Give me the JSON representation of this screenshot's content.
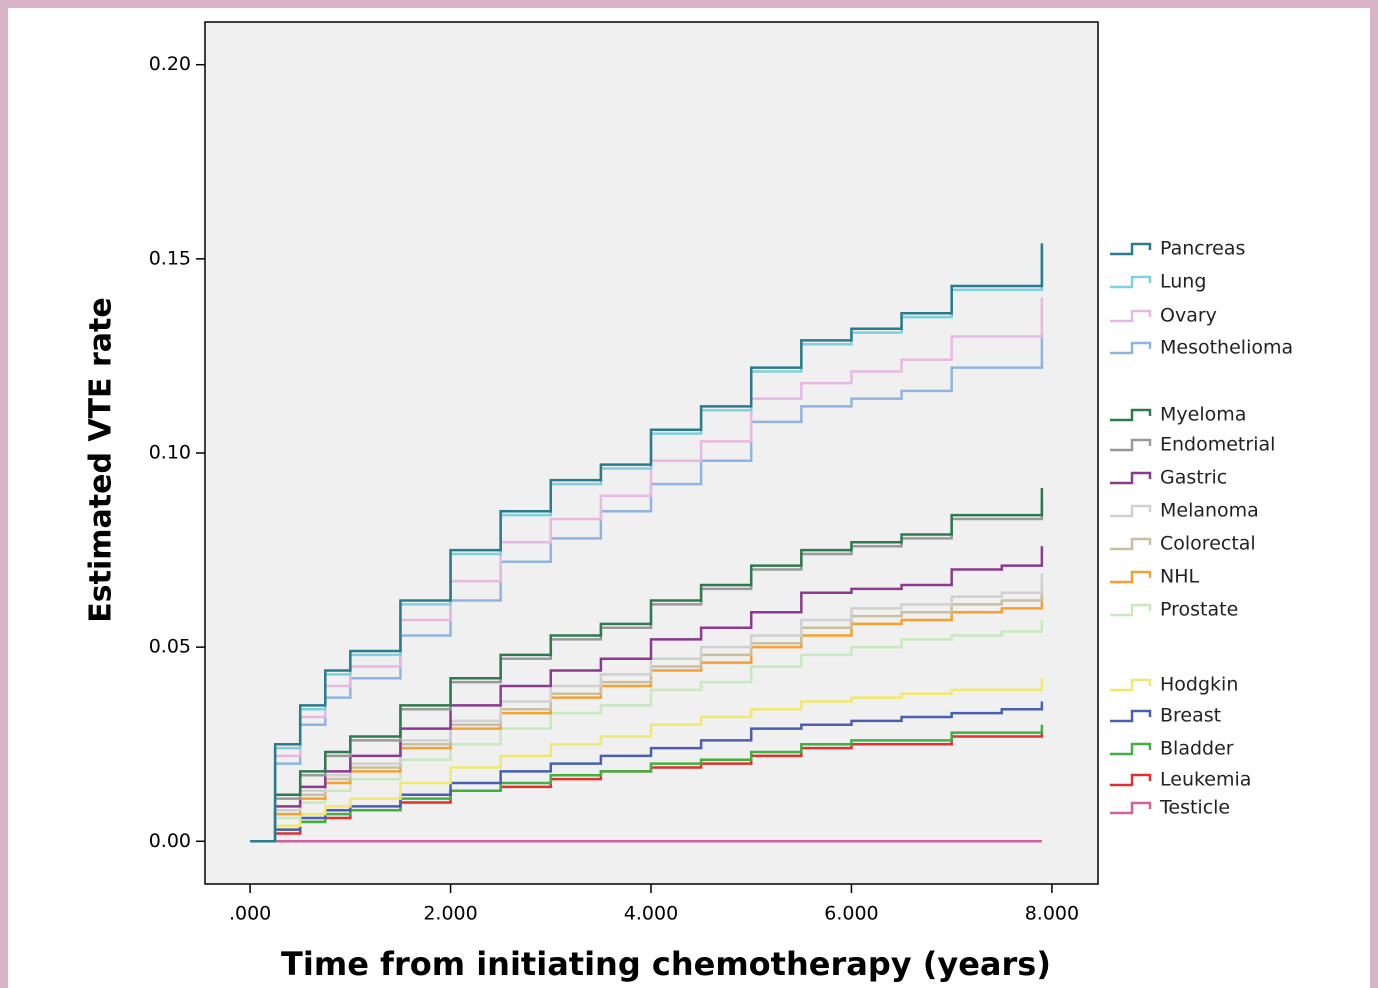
{
  "chart_data": {
    "type": "step",
    "y_label": "Estimated VTE rate",
    "x_label": "Time from initiating chemotherapy (years)",
    "xlim": [
      -0.45,
      8.46
    ],
    "ylim": [
      -0.011,
      0.211
    ],
    "xticks": [
      {
        "value": 0,
        "label": ".000"
      },
      {
        "value": 2,
        "label": "2.000"
      },
      {
        "value": 4,
        "label": "4.000"
      },
      {
        "value": 6,
        "label": "6.000"
      },
      {
        "value": 8,
        "label": "8.000"
      }
    ],
    "yticks": [
      {
        "value": 0,
        "label": "0.00"
      },
      {
        "value": 0.05,
        "label": "0.05"
      },
      {
        "value": 0.1,
        "label": "0.10"
      },
      {
        "value": 0.15,
        "label": "0.15"
      },
      {
        "value": 0.2,
        "label": "0.20"
      }
    ],
    "x": [
      0,
      0.25,
      0.5,
      0.75,
      1,
      1.5,
      2,
      2.5,
      3,
      3.5,
      4,
      4.5,
      5,
      5.5,
      6,
      6.5,
      7,
      7.5,
      7.9
    ],
    "series": [
      {
        "name": "Pancreas",
        "color": "#2a7b8c",
        "values": [
          0,
          0.025,
          0.035,
          0.044,
          0.049,
          0.062,
          0.075,
          0.085,
          0.093,
          0.097,
          0.106,
          0.112,
          0.122,
          0.129,
          0.132,
          0.136,
          0.143,
          0.143,
          0.154
        ]
      },
      {
        "name": "Lung",
        "color": "#7fd0dc",
        "values": [
          0,
          0.024,
          0.034,
          0.043,
          0.048,
          0.061,
          0.074,
          0.084,
          0.092,
          0.096,
          0.105,
          0.111,
          0.121,
          0.128,
          0.131,
          0.135,
          0.142,
          0.142,
          0.153
        ]
      },
      {
        "name": "Ovary",
        "color": "#e8b8e0",
        "values": [
          0,
          0.022,
          0.032,
          0.04,
          0.045,
          0.057,
          0.067,
          0.077,
          0.083,
          0.089,
          0.098,
          0.103,
          0.114,
          0.118,
          0.121,
          0.124,
          0.13,
          0.13,
          0.14
        ]
      },
      {
        "name": "Mesothelioma",
        "color": "#8fb4e0",
        "values": [
          0,
          0.02,
          0.03,
          0.037,
          0.042,
          0.053,
          0.062,
          0.072,
          0.078,
          0.085,
          0.092,
          0.098,
          0.108,
          0.112,
          0.114,
          0.116,
          0.122,
          0.122,
          0.13
        ]
      },
      {
        "name": "Myeloma",
        "color": "#2e7a50",
        "values": [
          0,
          0.012,
          0.018,
          0.023,
          0.027,
          0.035,
          0.042,
          0.048,
          0.053,
          0.056,
          0.062,
          0.066,
          0.071,
          0.075,
          0.077,
          0.079,
          0.084,
          0.084,
          0.091
        ]
      },
      {
        "name": "Endometrial",
        "color": "#999999",
        "values": [
          0,
          0.011,
          0.017,
          0.022,
          0.026,
          0.034,
          0.041,
          0.047,
          0.052,
          0.055,
          0.061,
          0.065,
          0.07,
          0.074,
          0.076,
          0.078,
          0.083,
          0.083,
          0.088
        ]
      },
      {
        "name": "Gastric",
        "color": "#8b3a8f",
        "values": [
          0,
          0.009,
          0.014,
          0.018,
          0.022,
          0.029,
          0.035,
          0.04,
          0.044,
          0.047,
          0.052,
          0.055,
          0.059,
          0.064,
          0.065,
          0.066,
          0.07,
          0.071,
          0.076
        ]
      },
      {
        "name": "Melanoma",
        "color": "#d0d0d0",
        "values": [
          0,
          0.008,
          0.013,
          0.017,
          0.02,
          0.026,
          0.031,
          0.036,
          0.04,
          0.043,
          0.047,
          0.05,
          0.053,
          0.057,
          0.06,
          0.061,
          0.063,
          0.064,
          0.069
        ]
      },
      {
        "name": "Colorectal",
        "color": "#c8c0a0",
        "values": [
          0,
          0.008,
          0.012,
          0.016,
          0.019,
          0.025,
          0.03,
          0.034,
          0.038,
          0.041,
          0.045,
          0.048,
          0.051,
          0.055,
          0.058,
          0.059,
          0.061,
          0.062,
          0.066
        ]
      },
      {
        "name": "NHL",
        "color": "#f5a030",
        "values": [
          0,
          0.007,
          0.011,
          0.015,
          0.018,
          0.024,
          0.029,
          0.033,
          0.037,
          0.04,
          0.044,
          0.046,
          0.05,
          0.053,
          0.056,
          0.057,
          0.059,
          0.06,
          0.063
        ]
      },
      {
        "name": "Prostate",
        "color": "#c8e8c0",
        "values": [
          0,
          0.006,
          0.01,
          0.013,
          0.016,
          0.021,
          0.025,
          0.029,
          0.033,
          0.035,
          0.039,
          0.041,
          0.045,
          0.048,
          0.05,
          0.052,
          0.053,
          0.054,
          0.057
        ]
      },
      {
        "name": "Hodgkin",
        "color": "#f0e870",
        "values": [
          0,
          0.004,
          0.007,
          0.009,
          0.011,
          0.015,
          0.019,
          0.022,
          0.025,
          0.027,
          0.03,
          0.032,
          0.034,
          0.036,
          0.037,
          0.038,
          0.039,
          0.039,
          0.042
        ]
      },
      {
        "name": "Breast",
        "color": "#4a5fb0",
        "values": [
          0,
          0.003,
          0.006,
          0.008,
          0.009,
          0.012,
          0.015,
          0.018,
          0.02,
          0.022,
          0.024,
          0.026,
          0.029,
          0.03,
          0.031,
          0.032,
          0.033,
          0.034,
          0.036
        ]
      },
      {
        "name": "Bladder",
        "color": "#40b040",
        "values": [
          0,
          0.003,
          0.005,
          0.007,
          0.008,
          0.011,
          0.013,
          0.015,
          0.017,
          0.018,
          0.02,
          0.021,
          0.023,
          0.025,
          0.026,
          0.026,
          0.028,
          0.028,
          0.03
        ]
      },
      {
        "name": "Leukemia",
        "color": "#e03030",
        "values": [
          0,
          0.002,
          0.005,
          0.006,
          0.008,
          0.01,
          0.013,
          0.014,
          0.016,
          0.018,
          0.019,
          0.02,
          0.022,
          0.024,
          0.025,
          0.025,
          0.027,
          0.027,
          0.028
        ]
      },
      {
        "name": "Testicle",
        "color": "#d060a0",
        "values": [
          0,
          0,
          0,
          0,
          0,
          0,
          0,
          0,
          0,
          0,
          0,
          0,
          0,
          0,
          0,
          0,
          0,
          0,
          0
        ]
      }
    ]
  }
}
